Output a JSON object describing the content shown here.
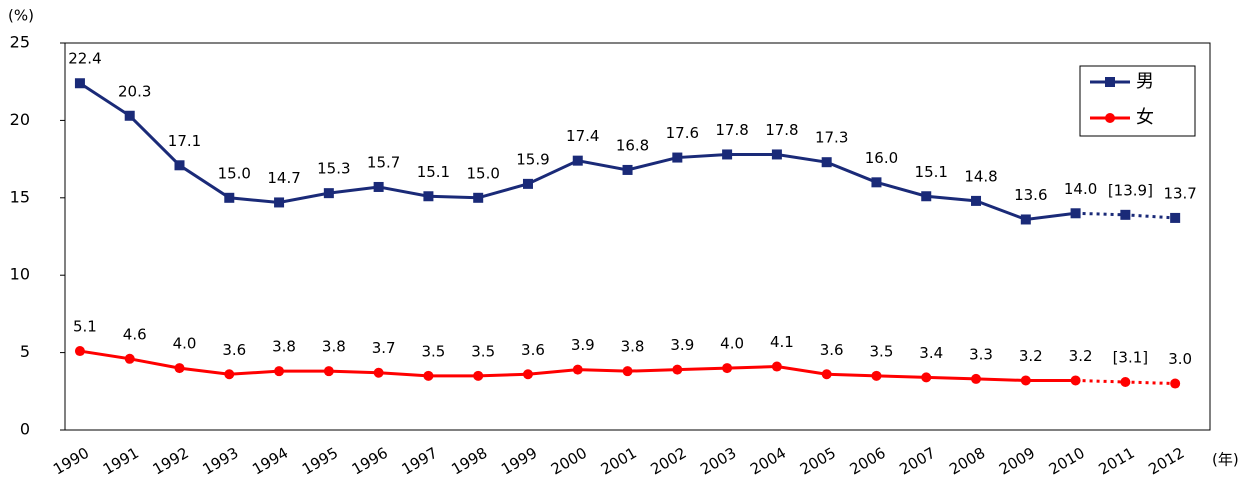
{
  "chart_data": {
    "type": "line",
    "y_unit": "(%)",
    "x_unit": "(年)",
    "categories": [
      "1990",
      "1991",
      "1992",
      "1993",
      "1994",
      "1995",
      "1996",
      "1997",
      "1998",
      "1999",
      "2000",
      "2001",
      "2002",
      "2003",
      "2004",
      "2005",
      "2006",
      "2007",
      "2008",
      "2009",
      "2010",
      "2011",
      "2012"
    ],
    "dotted_from_index": 20,
    "series": [
      {
        "name": "男",
        "color": "#1a2a78",
        "marker": "square",
        "values": [
          22.4,
          20.3,
          17.1,
          15.0,
          14.7,
          15.3,
          15.7,
          15.1,
          15.0,
          15.9,
          17.4,
          16.8,
          17.6,
          17.8,
          17.8,
          17.3,
          16.0,
          15.1,
          14.8,
          13.6,
          14.0,
          13.9,
          13.7
        ],
        "value_labels": [
          "22.4",
          "20.3",
          "17.1",
          "15.0",
          "14.7",
          "15.3",
          "15.7",
          "15.1",
          "15.0",
          "15.9",
          "17.4",
          "16.8",
          "17.6",
          "17.8",
          "17.8",
          "17.3",
          "16.0",
          "15.1",
          "14.8",
          "13.6",
          "14.0",
          "[13.9]",
          "13.7"
        ]
      },
      {
        "name": "女",
        "color": "#ff0000",
        "marker": "circle",
        "values": [
          5.1,
          4.6,
          4.0,
          3.6,
          3.8,
          3.8,
          3.7,
          3.5,
          3.5,
          3.6,
          3.9,
          3.8,
          3.9,
          4.0,
          4.1,
          3.6,
          3.5,
          3.4,
          3.3,
          3.2,
          3.2,
          3.1,
          3.0
        ],
        "value_labels": [
          "5.1",
          "4.6",
          "4.0",
          "3.6",
          "3.8",
          "3.8",
          "3.7",
          "3.5",
          "3.5",
          "3.6",
          "3.9",
          "3.8",
          "3.9",
          "4.0",
          "4.1",
          "3.6",
          "3.5",
          "3.4",
          "3.3",
          "3.2",
          "3.2",
          "[3.1]",
          "3.0"
        ]
      }
    ],
    "ylim": [
      0,
      25
    ],
    "yticks": [
      0,
      5,
      10,
      15,
      20,
      25
    ],
    "grid": false,
    "legend": "upper right"
  }
}
